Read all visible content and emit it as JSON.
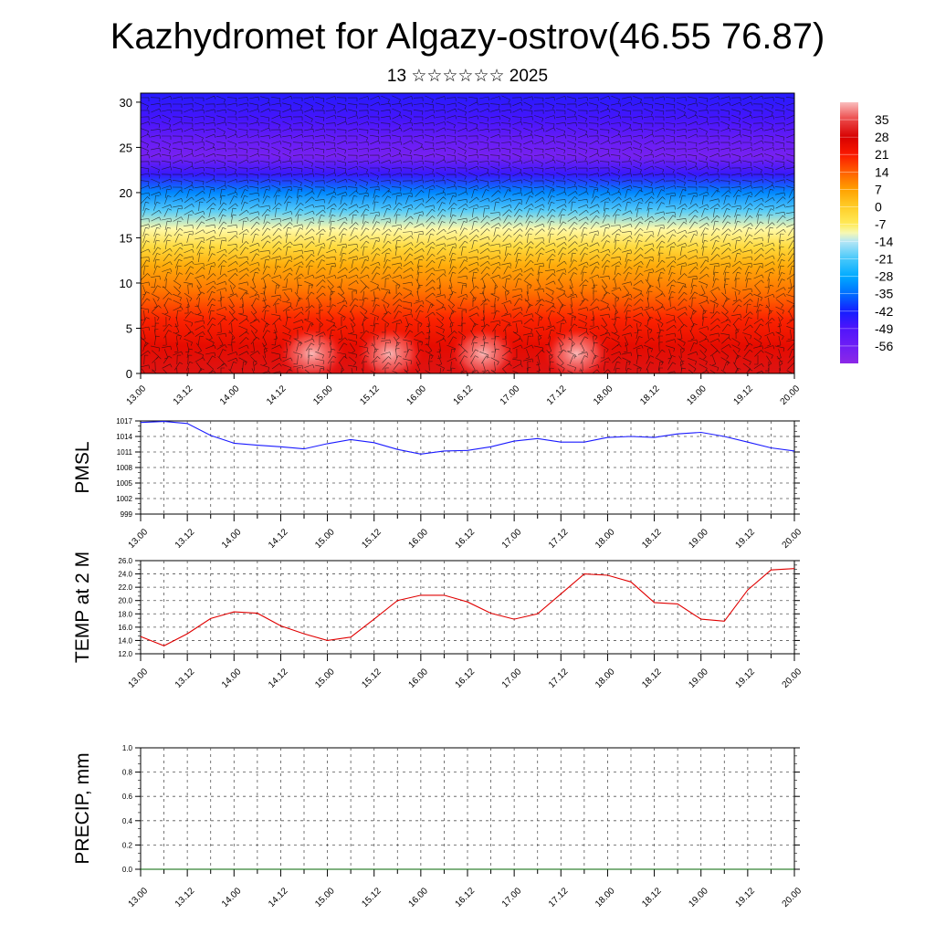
{
  "title": "Kazhydromet for Algazy-ostrov(46.55 76.87)",
  "subtitle": "13 ☆☆☆☆☆☆ 2025",
  "colors": {
    "pmsl_line": "#1a1aff",
    "temp_line": "#e00000",
    "precip_line": "#006400",
    "grid": "#555555"
  },
  "chart_data": [
    {
      "id": "temperature-cross-section",
      "type": "heatmap",
      "title": "",
      "xlabel": "",
      "ylabel": "",
      "x_ticks": [
        "13.00",
        "13.12",
        "14.00",
        "14.12",
        "15.00",
        "15.12",
        "16.00",
        "16.12",
        "17.00",
        "17.12",
        "18.00",
        "18.12",
        "19.00",
        "19.12",
        "20.00"
      ],
      "xlim": [
        0,
        84
      ],
      "ylim": [
        0,
        31
      ],
      "y_ticks": [
        0,
        5,
        10,
        15,
        20,
        25,
        30
      ],
      "colorbar": {
        "labels": [
          "35",
          "28",
          "21",
          "14",
          "7",
          "0",
          "-7",
          "-14",
          "-21",
          "-28",
          "-35",
          "-42",
          "-49",
          "-56"
        ],
        "range": [
          -63,
          42
        ]
      },
      "temperature_by_level": [
        {
          "level": 0,
          "value": 30
        },
        {
          "level": 3,
          "value": 25
        },
        {
          "level": 6,
          "value": 20
        },
        {
          "level": 9,
          "value": 12
        },
        {
          "level": 12,
          "value": 5
        },
        {
          "level": 14,
          "value": -3
        },
        {
          "level": 16,
          "value": -10
        },
        {
          "level": 18,
          "value": -20
        },
        {
          "level": 20,
          "value": -32
        },
        {
          "level": 22,
          "value": -46
        },
        {
          "level": 24,
          "value": -58
        },
        {
          "level": 26,
          "value": -54
        },
        {
          "level": 28,
          "value": -48
        },
        {
          "level": 31,
          "value": -44
        }
      ],
      "warm_spots_hours": [
        22,
        32,
        44,
        56
      ]
    },
    {
      "id": "pmsl",
      "type": "line",
      "ylabel": "PMSL",
      "ylim": [
        999,
        1017
      ],
      "y_ticks": [
        "1017",
        "1014",
        "1011",
        "1008",
        "1005",
        "1002",
        "999"
      ],
      "x_ticks": [
        "13.00",
        "13.12",
        "14.00",
        "14.12",
        "15.00",
        "15.12",
        "16.00",
        "16.12",
        "17.00",
        "17.12",
        "18.00",
        "18.12",
        "19.00",
        "19.12",
        "20.00"
      ],
      "x_hours": [
        0,
        3,
        6,
        9,
        12,
        15,
        18,
        21,
        24,
        27,
        30,
        33,
        36,
        39,
        42,
        45,
        48,
        51,
        54,
        57,
        60,
        63,
        66,
        69,
        72,
        75,
        78,
        81,
        84
      ],
      "values": [
        1016.7,
        1016.9,
        1016.5,
        1014.2,
        1012.7,
        1012.3,
        1012.0,
        1011.6,
        1012.6,
        1013.4,
        1012.8,
        1011.5,
        1010.6,
        1011.2,
        1011.3,
        1012.0,
        1013.1,
        1013.6,
        1012.9,
        1012.9,
        1013.8,
        1014.0,
        1013.8,
        1014.5,
        1014.8,
        1014.0,
        1012.9,
        1011.8,
        1011.2
      ]
    },
    {
      "id": "temperature-2m",
      "type": "line",
      "ylabel": "TEMP at 2 M",
      "ylim": [
        12,
        26
      ],
      "y_ticks": [
        "26.0",
        "24.0",
        "22.0",
        "20.0",
        "18.0",
        "16.0",
        "14.0",
        "12.0"
      ],
      "x_ticks": [
        "13.00",
        "13.12",
        "14.00",
        "14.12",
        "15.00",
        "15.12",
        "16.00",
        "16.12",
        "17.00",
        "17.12",
        "18.00",
        "18.12",
        "19.00",
        "19.12",
        "20.00"
      ],
      "x_hours": [
        0,
        3,
        6,
        9,
        12,
        15,
        18,
        21,
        24,
        27,
        30,
        33,
        36,
        39,
        42,
        45,
        48,
        51,
        54,
        57,
        60,
        63,
        66,
        69,
        72,
        75,
        78,
        81,
        84
      ],
      "values": [
        14.6,
        13.2,
        15.0,
        17.3,
        18.3,
        18.1,
        16.2,
        15.0,
        14.0,
        14.5,
        17.2,
        20.0,
        20.8,
        20.8,
        19.8,
        18.1,
        17.2,
        18.0,
        21.0,
        24.0,
        23.8,
        22.8,
        19.7,
        19.5,
        17.2,
        16.9,
        21.6,
        24.6,
        24.8
      ]
    },
    {
      "id": "precipitation",
      "type": "line",
      "ylabel": "PRECIP, mm",
      "ylim": [
        0,
        1
      ],
      "y_ticks": [
        "1.0",
        "0.8",
        "0.6",
        "0.4",
        "0.2",
        "0.0"
      ],
      "x_ticks": [
        "13.00",
        "13.12",
        "14.00",
        "14.12",
        "15.00",
        "15.12",
        "16.00",
        "16.12",
        "17.00",
        "17.12",
        "18.00",
        "18.12",
        "19.00",
        "19.12",
        "20.00"
      ],
      "x_hours": [
        0,
        84
      ],
      "values": [
        0,
        0
      ]
    }
  ]
}
